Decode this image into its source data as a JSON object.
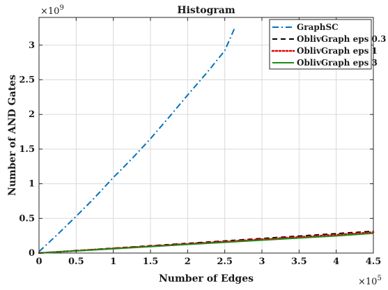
{
  "chart_data": {
    "type": "line",
    "title": "Histogram",
    "xlabel": "Number of Edges",
    "ylabel": "Number of AND Gates",
    "x_multiplier": "×10",
    "x_multiplier_exp": "5",
    "y_multiplier": "×10",
    "y_multiplier_exp": "9",
    "xlim": [
      0,
      4.5
    ],
    "ylim": [
      0,
      3.4
    ],
    "x_ticks": [
      "0",
      "0.5",
      "1",
      "1.5",
      "2",
      "2.5",
      "3",
      "3.5",
      "4",
      "4.5"
    ],
    "y_ticks": [
      "0",
      "0.5",
      "1",
      "1.5",
      "2",
      "2.5",
      "3"
    ],
    "grid": true,
    "legend_position": "top-right",
    "series": [
      {
        "name": "GraphSC",
        "color": "#0072bd",
        "style": "dash-dot",
        "x": [
          0,
          0.25,
          0.5,
          0.75,
          1.0,
          1.25,
          1.5,
          1.75,
          2.0,
          2.25,
          2.5,
          2.63
        ],
        "y": [
          0.02,
          0.27,
          0.53,
          0.8,
          1.09,
          1.36,
          1.65,
          1.96,
          2.28,
          2.59,
          2.92,
          3.24
        ]
      },
      {
        "name": "OblivGraph eps 0.3",
        "color": "#000000",
        "style": "dashed",
        "x": [
          0,
          0.5,
          1.0,
          1.5,
          2.0,
          2.5,
          3.0,
          3.5,
          4.0,
          4.5
        ],
        "y": [
          0.0,
          0.035,
          0.07,
          0.105,
          0.14,
          0.175,
          0.21,
          0.245,
          0.28,
          0.315
        ]
      },
      {
        "name": "OblivGraph eps 1",
        "color": "#e00000",
        "style": "dotted",
        "x": [
          0,
          0.5,
          1.0,
          1.5,
          2.0,
          2.5,
          3.0,
          3.5,
          4.0,
          4.5
        ],
        "y": [
          0.0,
          0.033,
          0.066,
          0.099,
          0.132,
          0.165,
          0.198,
          0.231,
          0.264,
          0.3
        ]
      },
      {
        "name": "OblivGraph eps 3",
        "color": "#1a8a1a",
        "style": "solid",
        "x": [
          0,
          0.5,
          1.0,
          1.5,
          2.0,
          2.5,
          3.0,
          3.5,
          4.0,
          4.5
        ],
        "y": [
          0.0,
          0.031,
          0.062,
          0.093,
          0.124,
          0.155,
          0.186,
          0.217,
          0.248,
          0.285
        ]
      }
    ]
  }
}
